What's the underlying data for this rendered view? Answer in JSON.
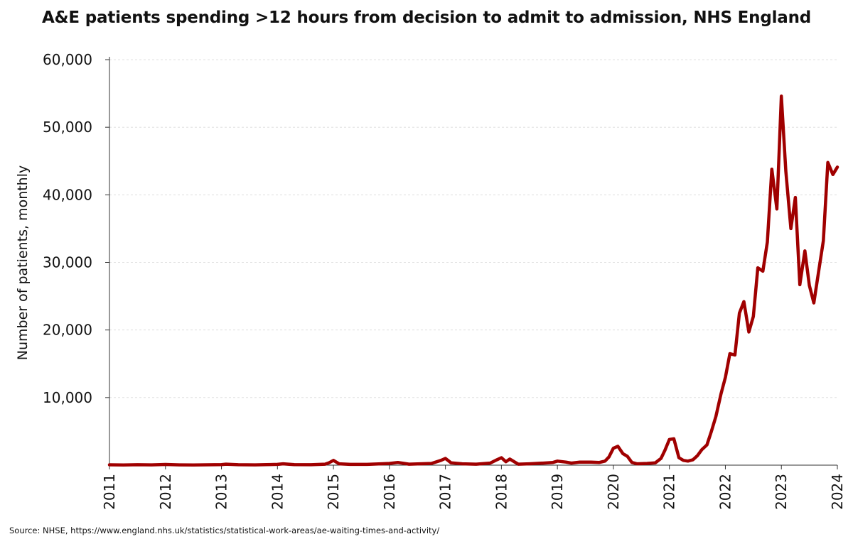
{
  "chart_data": {
    "type": "line",
    "title": "A&E patients spending >12 hours from decision to admit to admission, NHS England",
    "xlabel": "",
    "ylabel": "Number of patients, monthly",
    "source": "Source: NHSE, https://www.england.nhs.uk/statistics/statistical-work-areas/ae-waiting-times-and-activity/",
    "ylim": [
      0,
      60000
    ],
    "xlim": [
      2011,
      2024
    ],
    "yticks": [
      {
        "value": 10000,
        "label": "10,000"
      },
      {
        "value": 20000,
        "label": "20,000"
      },
      {
        "value": 30000,
        "label": "30,000"
      },
      {
        "value": 40000,
        "label": "40,000"
      },
      {
        "value": 50000,
        "label": "50,000"
      },
      {
        "value": 60000,
        "label": "60,000"
      }
    ],
    "xticks": [
      {
        "value": 2011,
        "label": "2011"
      },
      {
        "value": 2012,
        "label": "2012"
      },
      {
        "value": 2013,
        "label": "2013"
      },
      {
        "value": 2014,
        "label": "2014"
      },
      {
        "value": 2015,
        "label": "2015"
      },
      {
        "value": 2016,
        "label": "2016"
      },
      {
        "value": 2017,
        "label": "2017"
      },
      {
        "value": 2018,
        "label": "2018"
      },
      {
        "value": 2019,
        "label": "2019"
      },
      {
        "value": 2020,
        "label": "2020"
      },
      {
        "value": 2021,
        "label": "2021"
      },
      {
        "value": 2022,
        "label": "2022"
      },
      {
        "value": 2023,
        "label": "2023"
      },
      {
        "value": 2024,
        "label": "2024"
      }
    ],
    "grid": true,
    "line_color": "#a00000",
    "series": [
      {
        "points": [
          [
            2011.0,
            50
          ],
          [
            2011.25,
            30
          ],
          [
            2011.5,
            60
          ],
          [
            2011.75,
            40
          ],
          [
            2012.0,
            100
          ],
          [
            2012.25,
            40
          ],
          [
            2012.5,
            30
          ],
          [
            2012.75,
            50
          ],
          [
            2013.0,
            80
          ],
          [
            2013.08,
            150
          ],
          [
            2013.3,
            60
          ],
          [
            2013.6,
            40
          ],
          [
            2013.8,
            70
          ],
          [
            2014.0,
            120
          ],
          [
            2014.1,
            200
          ],
          [
            2014.3,
            80
          ],
          [
            2014.6,
            60
          ],
          [
            2014.85,
            150
          ],
          [
            2014.92,
            350
          ],
          [
            2015.0,
            700
          ],
          [
            2015.1,
            200
          ],
          [
            2015.3,
            120
          ],
          [
            2015.6,
            120
          ],
          [
            2015.85,
            200
          ],
          [
            2016.0,
            250
          ],
          [
            2016.15,
            400
          ],
          [
            2016.35,
            150
          ],
          [
            2016.55,
            200
          ],
          [
            2016.75,
            250
          ],
          [
            2016.92,
            700
          ],
          [
            2017.0,
            1000
          ],
          [
            2017.1,
            350
          ],
          [
            2017.3,
            200
          ],
          [
            2017.55,
            150
          ],
          [
            2017.8,
            300
          ],
          [
            2017.92,
            800
          ],
          [
            2018.0,
            1100
          ],
          [
            2018.08,
            500
          ],
          [
            2018.15,
            900
          ],
          [
            2018.3,
            150
          ],
          [
            2018.5,
            200
          ],
          [
            2018.75,
            300
          ],
          [
            2018.92,
            400
          ],
          [
            2019.0,
            600
          ],
          [
            2019.15,
            450
          ],
          [
            2019.25,
            300
          ],
          [
            2019.4,
            450
          ],
          [
            2019.6,
            450
          ],
          [
            2019.75,
            400
          ],
          [
            2019.85,
            600
          ],
          [
            2019.92,
            1200
          ],
          [
            2020.0,
            2500
          ],
          [
            2020.08,
            2800
          ],
          [
            2020.17,
            1700
          ],
          [
            2020.25,
            1300
          ],
          [
            2020.33,
            400
          ],
          [
            2020.42,
            200
          ],
          [
            2020.6,
            250
          ],
          [
            2020.75,
            350
          ],
          [
            2020.85,
            1000
          ],
          [
            2020.92,
            2200
          ],
          [
            2021.0,
            3800
          ],
          [
            2021.08,
            3900
          ],
          [
            2021.17,
            1100
          ],
          [
            2021.25,
            700
          ],
          [
            2021.33,
            600
          ],
          [
            2021.42,
            800
          ],
          [
            2021.5,
            1400
          ],
          [
            2021.58,
            2300
          ],
          [
            2021.67,
            3000
          ],
          [
            2021.75,
            5000
          ],
          [
            2021.83,
            7200
          ],
          [
            2021.92,
            10500
          ],
          [
            2022.0,
            13000
          ],
          [
            2022.08,
            16500
          ],
          [
            2022.17,
            16300
          ],
          [
            2022.25,
            22500
          ],
          [
            2022.33,
            24200
          ],
          [
            2022.42,
            19700
          ],
          [
            2022.5,
            22000
          ],
          [
            2022.58,
            29200
          ],
          [
            2022.67,
            28700
          ],
          [
            2022.75,
            33000
          ],
          [
            2022.83,
            43800
          ],
          [
            2022.92,
            37900
          ],
          [
            2023.0,
            54600
          ],
          [
            2023.08,
            43500
          ],
          [
            2023.17,
            35000
          ],
          [
            2023.25,
            39600
          ],
          [
            2023.33,
            26700
          ],
          [
            2023.42,
            31700
          ],
          [
            2023.5,
            26600
          ],
          [
            2023.58,
            24000
          ],
          [
            2023.67,
            28900
          ],
          [
            2023.75,
            33200
          ],
          [
            2023.83,
            44800
          ],
          [
            2023.92,
            43000
          ],
          [
            2024.0,
            44100
          ]
        ]
      }
    ]
  }
}
